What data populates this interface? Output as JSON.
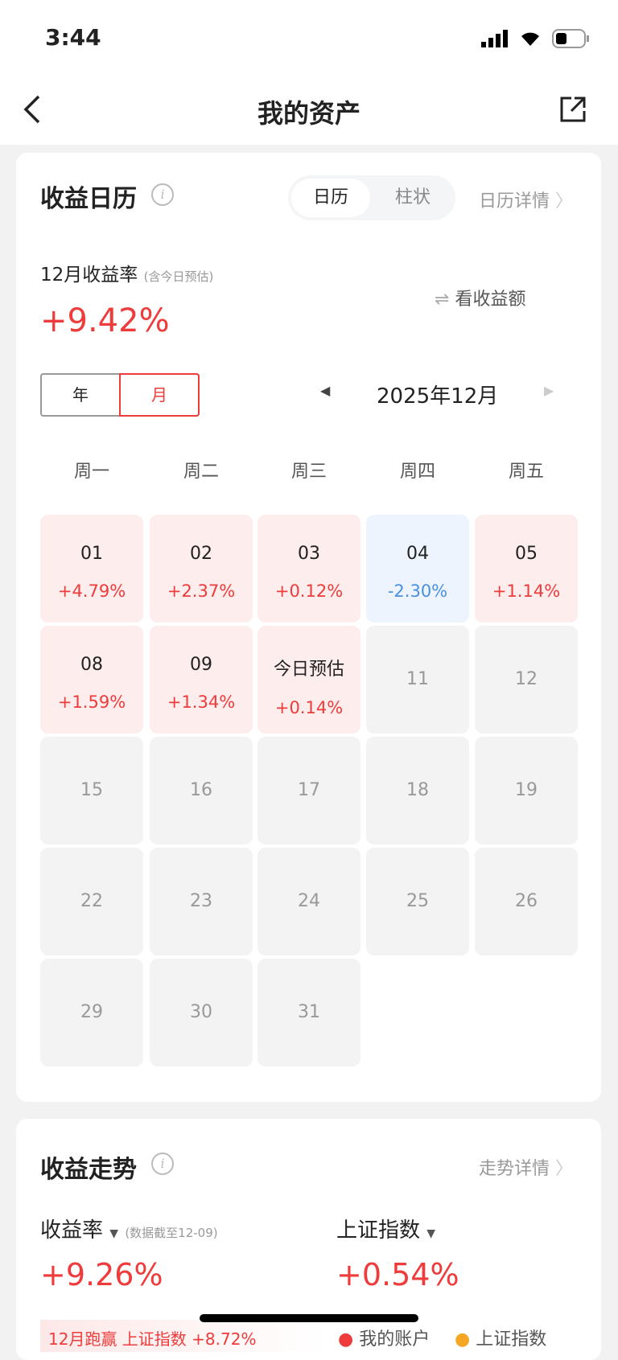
{
  "status": {
    "time": "3:44"
  },
  "nav": {
    "title": "我的资产"
  },
  "calendar": {
    "title": "收益日历",
    "tabs": [
      "日历",
      "柱状"
    ],
    "detail_link": "日历详情",
    "rate_label": "12月收益率",
    "rate_note": "(含今日预估)",
    "rate_value": "+9.42%",
    "toggle_label": "看收益额",
    "period_tabs": [
      "年",
      "月"
    ],
    "month": "2025年12月",
    "weekdays": [
      "周一",
      "周二",
      "周三",
      "周四",
      "周五"
    ],
    "days": [
      {
        "d": "01",
        "v": "+4.79%",
        "t": "up"
      },
      {
        "d": "02",
        "v": "+2.37%",
        "t": "up"
      },
      {
        "d": "03",
        "v": "+0.12%",
        "t": "up"
      },
      {
        "d": "04",
        "v": "-2.30%",
        "t": "dn"
      },
      {
        "d": "05",
        "v": "+1.14%",
        "t": "up"
      },
      {
        "d": "08",
        "v": "+1.59%",
        "t": "up"
      },
      {
        "d": "09",
        "v": "+1.34%",
        "t": "up"
      },
      {
        "d": "今日预估",
        "v": "+0.14%",
        "t": "up"
      },
      {
        "d": "11",
        "t": "fut"
      },
      {
        "d": "12",
        "t": "fut"
      },
      {
        "d": "15",
        "t": "fut"
      },
      {
        "d": "16",
        "t": "fut"
      },
      {
        "d": "17",
        "t": "fut"
      },
      {
        "d": "18",
        "t": "fut"
      },
      {
        "d": "19",
        "t": "fut"
      },
      {
        "d": "22",
        "t": "fut"
      },
      {
        "d": "23",
        "t": "fut"
      },
      {
        "d": "24",
        "t": "fut"
      },
      {
        "d": "25",
        "t": "fut"
      },
      {
        "d": "26",
        "t": "fut"
      },
      {
        "d": "29",
        "t": "fut"
      },
      {
        "d": "30",
        "t": "fut"
      },
      {
        "d": "31",
        "t": "fut"
      }
    ]
  },
  "trend": {
    "title": "收益走势",
    "detail_link": "走势详情",
    "rate_label": "收益率",
    "data_note": "(数据截至12-09)",
    "rate_value": "+9.26%",
    "index_label": "上证指数",
    "index_value": "+0.54%",
    "beat_text": "12月跑赢 上证指数 +8.72%",
    "legend": [
      {
        "name": "我的账户",
        "color": "#ee3b3b"
      },
      {
        "name": "上证指数",
        "color": "#f5a623"
      }
    ]
  },
  "colors": {
    "up": "#ee3b3b",
    "down": "#4a90e2"
  }
}
